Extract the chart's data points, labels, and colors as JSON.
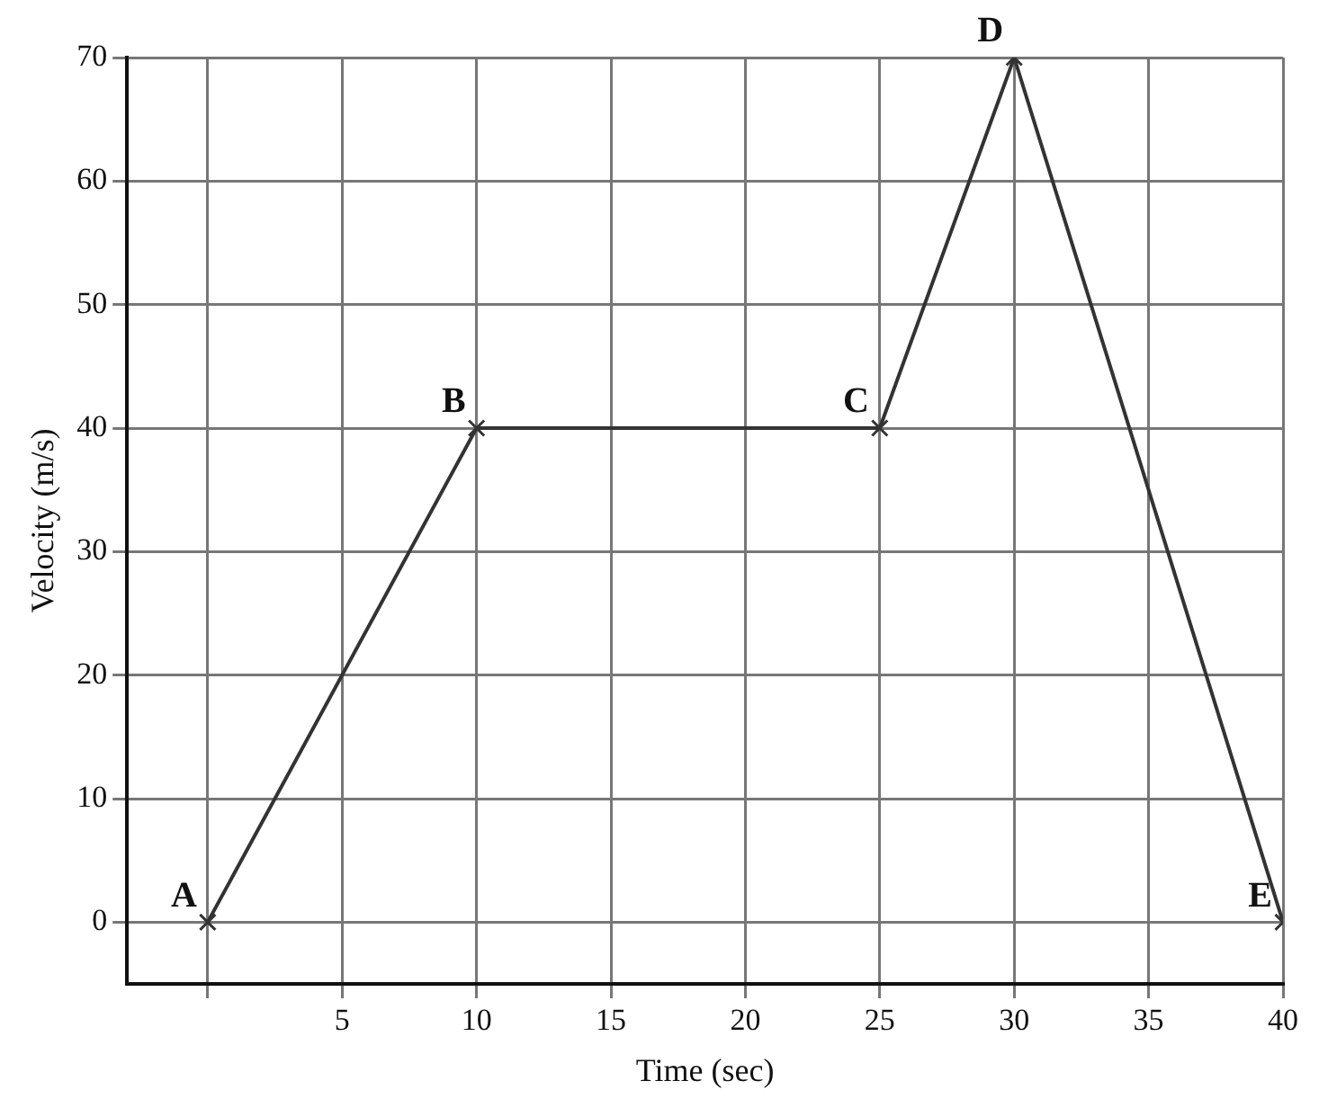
{
  "chart_data": {
    "type": "line",
    "xlabel": "Time (sec)",
    "ylabel": "Velocity (m/s)",
    "x": [
      0,
      10,
      25,
      30,
      40
    ],
    "series": [
      {
        "color": "#333333",
        "values": [
          0,
          40,
          40,
          70,
          0
        ]
      }
    ],
    "xlim": [
      -3,
      40
    ],
    "ylim": [
      -5,
      70
    ],
    "xticks": [
      {
        "value": 0,
        "label": null
      },
      5,
      10,
      15,
      20,
      25,
      30,
      35,
      40
    ],
    "yticks": [
      0,
      10,
      20,
      30,
      40,
      50,
      60,
      70
    ],
    "grid": true,
    "marker": "cross",
    "line_style": "solid",
    "annotations": [
      {
        "text": "A",
        "x": 0,
        "y": 0
      },
      {
        "text": "B",
        "x": 10,
        "y": 40
      },
      {
        "text": "C",
        "x": 25,
        "y": 40
      },
      {
        "text": "D",
        "x": 30,
        "y": 70
      },
      {
        "text": "E",
        "x": 40,
        "y": 0
      }
    ]
  }
}
